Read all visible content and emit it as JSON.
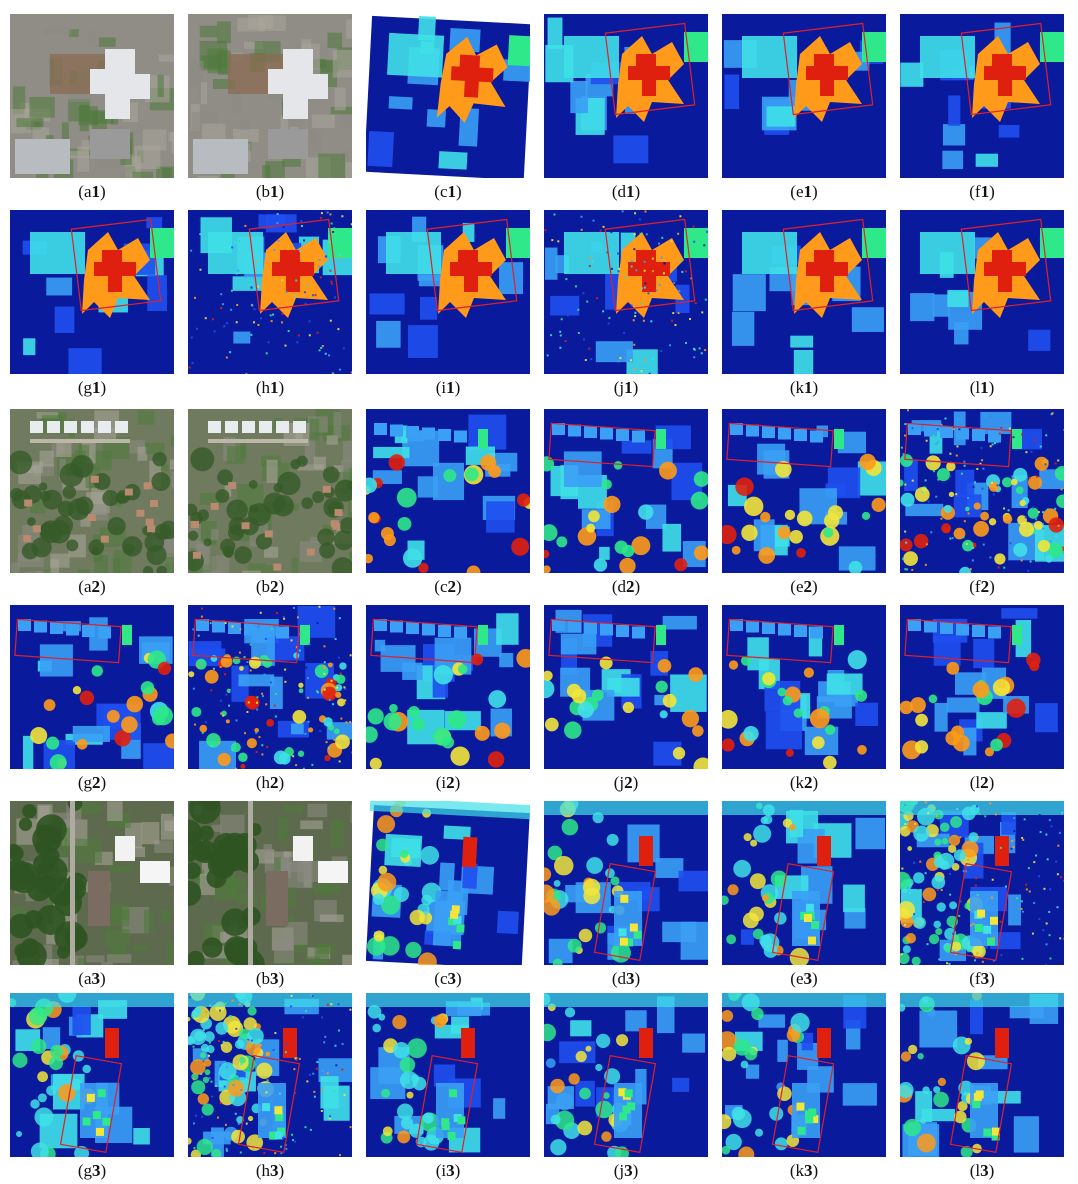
{
  "rows": [
    {
      "panels": [
        {
          "letter": "a",
          "num": "1",
          "kind": "satellite",
          "scene": 1
        },
        {
          "letter": "b",
          "num": "1",
          "kind": "satellite",
          "scene": 1
        },
        {
          "letter": "c",
          "num": "1",
          "kind": "heightmap",
          "scene": 1,
          "box": false,
          "tilt": true
        },
        {
          "letter": "d",
          "num": "1",
          "kind": "heightmap",
          "scene": 1,
          "box": true
        },
        {
          "letter": "e",
          "num": "1",
          "kind": "heightmap",
          "scene": 1,
          "box": true
        },
        {
          "letter": "f",
          "num": "1",
          "kind": "heightmap",
          "scene": 1,
          "box": true
        }
      ]
    },
    {
      "panels": [
        {
          "letter": "g",
          "num": "1",
          "kind": "heightmap",
          "scene": 1,
          "box": true
        },
        {
          "letter": "h",
          "num": "1",
          "kind": "heightmap",
          "scene": 1,
          "box": true,
          "noisy": true
        },
        {
          "letter": "i",
          "num": "1",
          "kind": "heightmap",
          "scene": 1,
          "box": true
        },
        {
          "letter": "j",
          "num": "1",
          "kind": "heightmap",
          "scene": 1,
          "box": true,
          "noisy": true
        },
        {
          "letter": "k",
          "num": "1",
          "kind": "heightmap",
          "scene": 1,
          "box": true
        },
        {
          "letter": "l",
          "num": "1",
          "kind": "heightmap",
          "scene": 1,
          "box": true
        }
      ]
    },
    {
      "panels": [
        {
          "letter": "a",
          "num": "2",
          "kind": "satellite",
          "scene": 2
        },
        {
          "letter": "b",
          "num": "2",
          "kind": "satellite",
          "scene": 2
        },
        {
          "letter": "c",
          "num": "2",
          "kind": "heightmap",
          "scene": 2,
          "box": false
        },
        {
          "letter": "d",
          "num": "2",
          "kind": "heightmap",
          "scene": 2,
          "box": true
        },
        {
          "letter": "e",
          "num": "2",
          "kind": "heightmap",
          "scene": 2,
          "box": true
        },
        {
          "letter": "f",
          "num": "2",
          "kind": "heightmap",
          "scene": 2,
          "box": true,
          "noisy": true
        }
      ]
    },
    {
      "panels": [
        {
          "letter": "g",
          "num": "2",
          "kind": "heightmap",
          "scene": 2,
          "box": true
        },
        {
          "letter": "h",
          "num": "2",
          "kind": "heightmap",
          "scene": 2,
          "box": true,
          "noisy": true
        },
        {
          "letter": "i",
          "num": "2",
          "kind": "heightmap",
          "scene": 2,
          "box": true
        },
        {
          "letter": "j",
          "num": "2",
          "kind": "heightmap",
          "scene": 2,
          "box": true
        },
        {
          "letter": "k",
          "num": "2",
          "kind": "heightmap",
          "scene": 2,
          "box": true
        },
        {
          "letter": "l",
          "num": "2",
          "kind": "heightmap",
          "scene": 2,
          "box": true
        }
      ]
    },
    {
      "panels": [
        {
          "letter": "a",
          "num": "3",
          "kind": "satellite",
          "scene": 3
        },
        {
          "letter": "b",
          "num": "3",
          "kind": "satellite",
          "scene": 3
        },
        {
          "letter": "c",
          "num": "3",
          "kind": "heightmap",
          "scene": 3,
          "box": false,
          "tilt": true
        },
        {
          "letter": "d",
          "num": "3",
          "kind": "heightmap",
          "scene": 3,
          "box": true
        },
        {
          "letter": "e",
          "num": "3",
          "kind": "heightmap",
          "scene": 3,
          "box": true
        },
        {
          "letter": "f",
          "num": "3",
          "kind": "heightmap",
          "scene": 3,
          "box": true,
          "noisy": true
        }
      ]
    },
    {
      "panels": [
        {
          "letter": "g",
          "num": "3",
          "kind": "heightmap",
          "scene": 3,
          "box": true
        },
        {
          "letter": "h",
          "num": "3",
          "kind": "heightmap",
          "scene": 3,
          "box": true,
          "noisy": true
        },
        {
          "letter": "i",
          "num": "3",
          "kind": "heightmap",
          "scene": 3,
          "box": true
        },
        {
          "letter": "j",
          "num": "3",
          "kind": "heightmap",
          "scene": 3,
          "box": true
        },
        {
          "letter": "k",
          "num": "3",
          "kind": "heightmap",
          "scene": 3,
          "box": true
        },
        {
          "letter": "l",
          "num": "3",
          "kind": "heightmap",
          "scene": 3,
          "box": true
        }
      ]
    }
  ],
  "colors": {
    "deep_blue": "#0a1a9c",
    "blue": "#1f4ff0",
    "light_blue": "#3aa0f5",
    "cyan": "#3fe0e8",
    "green": "#2ee88a",
    "yellow": "#f2e63a",
    "orange": "#ff9a1a",
    "red": "#e0200e",
    "box_red": "#e0202a",
    "roof_gray": "#b8bcc0",
    "vegetation": "#4f7a3a",
    "pavement": "#8c8a84"
  }
}
